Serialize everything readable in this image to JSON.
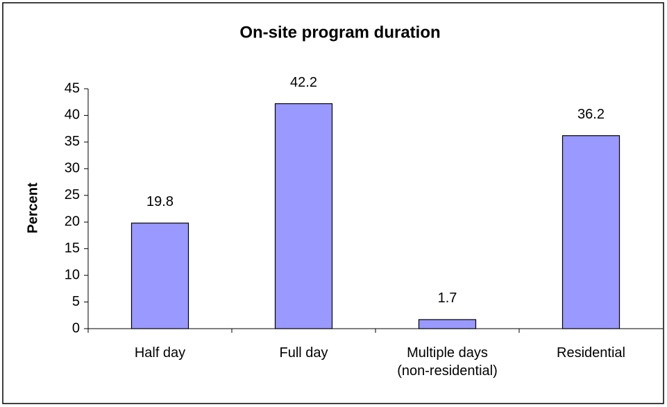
{
  "chart_data": {
    "type": "bar",
    "title": "On-site program duration",
    "y_label": "Percent",
    "categories": [
      "Half day",
      "Full day",
      "Multiple days\n(non-residential)",
      "Residential"
    ],
    "values": [
      19.8,
      42.2,
      1.7,
      36.2
    ],
    "color": "#9999ff",
    "ylim": [
      0,
      45
    ],
    "yticks": [
      0,
      5,
      10,
      15,
      20,
      25,
      30,
      35,
      40,
      45
    ],
    "grid": false
  }
}
